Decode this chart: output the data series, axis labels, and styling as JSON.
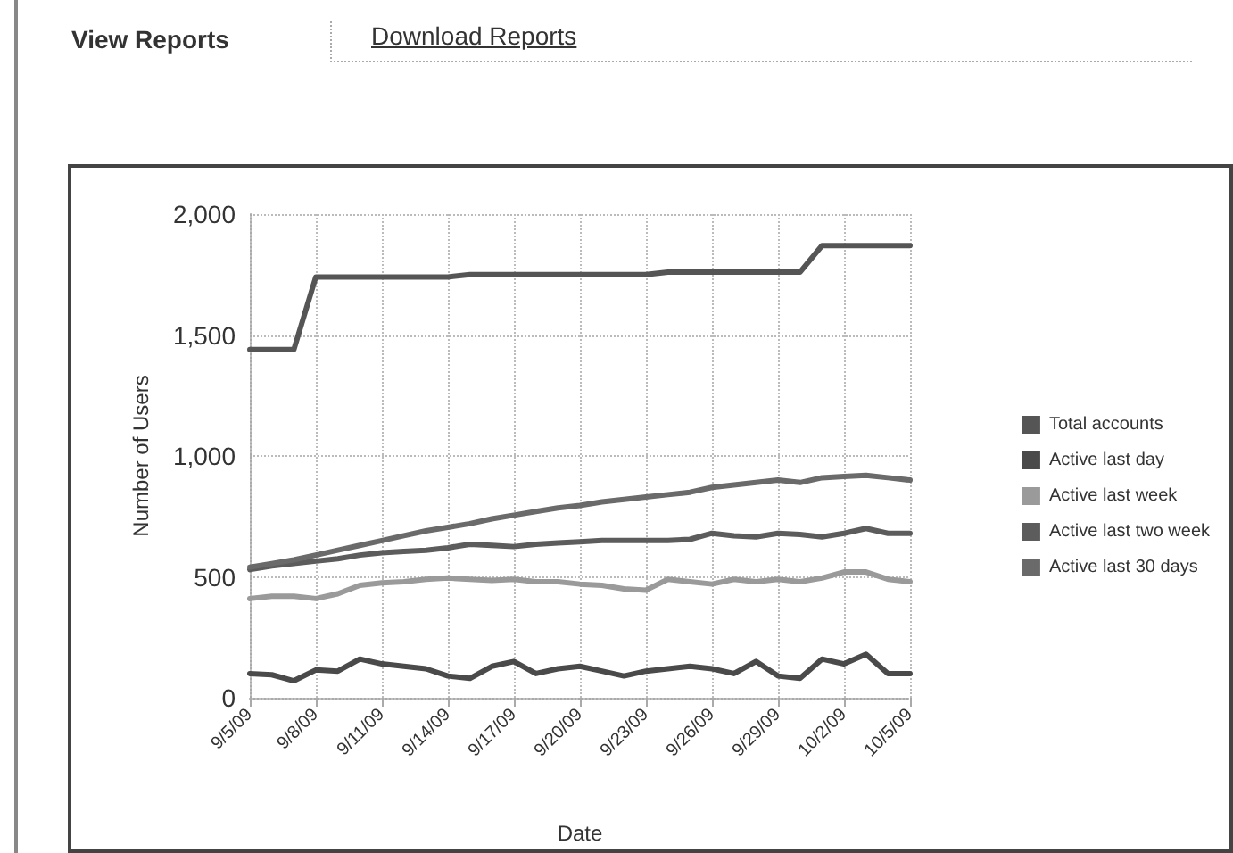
{
  "chart_data": {
    "type": "line",
    "annotations": [
      "View Reports",
      "Download Reports"
    ],
    "xlabel": "Date",
    "ylabel": "Number of Users",
    "x": [
      "--09-05",
      "--09-06",
      "--09-07",
      "--09-08",
      "--09-09",
      "--09-10",
      "--09-11",
      "--09-12",
      "--09-13",
      "--09-14",
      "--09-15",
      "--09-16",
      "--09-17",
      "--09-18",
      "--09-19",
      "--09-20",
      "--09-21",
      "--09-22",
      "--09-23",
      "--09-24",
      "--09-25",
      "--09-26",
      "--09-27",
      "--09-28",
      "--09-29",
      "--09-30",
      "--10-01",
      "--10-02",
      "--10-03",
      "--10-04",
      "--10-05"
    ],
    "xlim": [
      "--09-05",
      "--10-05"
    ],
    "xticks": [
      {
        "value": "--09-05",
        "label": "9/5/09"
      },
      {
        "value": "--09-08",
        "label": "9/8/09"
      },
      {
        "value": "--09-11",
        "label": "9/11/09"
      },
      {
        "value": "--09-14",
        "label": "9/14/09"
      },
      {
        "value": "--09-17",
        "label": "9/17/09"
      },
      {
        "value": "--09-20",
        "label": "9/20/09"
      },
      {
        "value": "--09-23",
        "label": "9/23/09"
      },
      {
        "value": "--09-26",
        "label": "9/26/09"
      },
      {
        "value": "--09-29",
        "label": "9/29/09"
      },
      {
        "value": "--10-02",
        "label": "10/2/09"
      },
      {
        "value": "--10-05",
        "label": "10/5/09"
      }
    ],
    "ylim": [
      0,
      2000
    ],
    "yticks": [
      {
        "value": 0,
        "label": "0"
      },
      {
        "value": 500,
        "label": "500"
      },
      {
        "value": 1000,
        "label": "1,000"
      },
      {
        "value": 1500,
        "label": "1,500"
      },
      {
        "value": 2000,
        "label": "2,000"
      }
    ],
    "grid": true,
    "legend": "right",
    "marker": "none",
    "line_style": "solid",
    "series": [
      {
        "name": "Total accounts",
        "color": "#555555",
        "values": [
          1440,
          1440,
          1440,
          1740,
          1740,
          1740,
          1740,
          1740,
          1740,
          1740,
          1750,
          1750,
          1750,
          1750,
          1750,
          1750,
          1750,
          1750,
          1750,
          1760,
          1760,
          1760,
          1760,
          1760,
          1760,
          1760,
          1870,
          1870,
          1870,
          1870,
          1870
        ]
      },
      {
        "name": "Active last day",
        "color": "#4a4a4a",
        "values": [
          100,
          95,
          70,
          115,
          110,
          160,
          140,
          130,
          120,
          90,
          80,
          130,
          150,
          100,
          120,
          130,
          110,
          90,
          110,
          120,
          130,
          120,
          100,
          150,
          90,
          80,
          160,
          140,
          180,
          100,
          100
        ]
      },
      {
        "name": "Active last week",
        "color": "#9a9a9a",
        "values": [
          410,
          420,
          420,
          410,
          430,
          465,
          475,
          480,
          490,
          495,
          490,
          485,
          490,
          480,
          480,
          470,
          465,
          450,
          445,
          490,
          480,
          470,
          490,
          480,
          490,
          480,
          495,
          520,
          520,
          490,
          480
        ]
      },
      {
        "name": "Active last two week",
        "color": "#5c5c5c",
        "values": [
          530,
          545,
          555,
          565,
          575,
          590,
          600,
          605,
          610,
          620,
          635,
          630,
          625,
          635,
          640,
          645,
          650,
          650,
          650,
          650,
          655,
          680,
          670,
          665,
          680,
          675,
          665,
          680,
          700,
          680,
          680
        ]
      },
      {
        "name": "Active last 30 days",
        "color": "#6a6a6a",
        "values": [
          540,
          555,
          570,
          590,
          610,
          630,
          650,
          670,
          690,
          705,
          720,
          740,
          755,
          770,
          785,
          795,
          810,
          820,
          830,
          840,
          850,
          870,
          880,
          890,
          900,
          890,
          910,
          915,
          920,
          910,
          900
        ]
      }
    ]
  }
}
